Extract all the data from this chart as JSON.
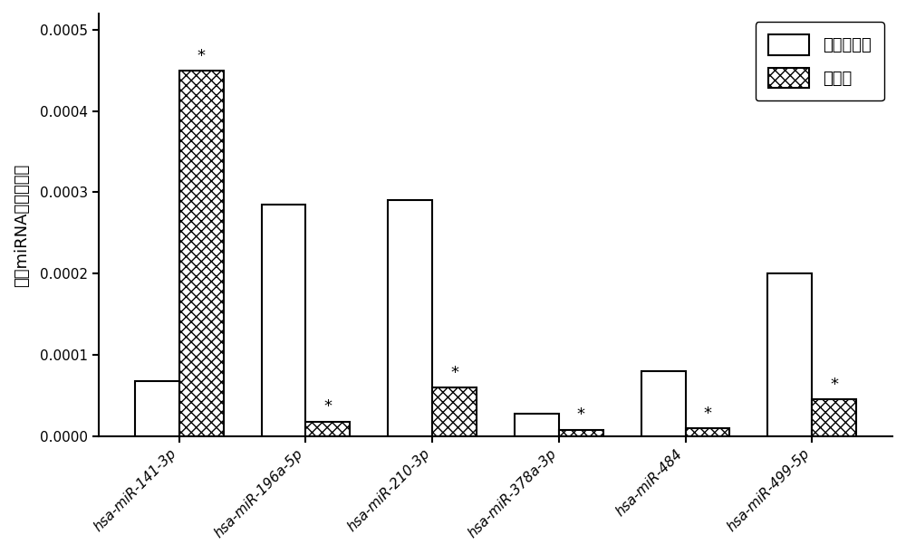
{
  "categories": [
    "hsa-miR-141-3p",
    "hsa-miR-196a-5p",
    "hsa-miR-210-3p",
    "hsa-miR-378a-3p",
    "hsa-miR-484",
    "hsa-miR-499-5p"
  ],
  "normal_values": [
    6.8e-05,
    0.000285,
    0.00029,
    2.8e-05,
    8e-05,
    0.0002
  ],
  "obese_values": [
    0.00045,
    1.8e-05,
    6e-05,
    8e-06,
    1e-05,
    4.5e-05
  ],
  "normal_label": "正常体重者",
  "obese_label": "肥胖者",
  "ylabel": "血浆miRNA表达中位数",
  "ylim": [
    0,
    0.00052
  ],
  "yticks": [
    0.0,
    0.0001,
    0.0002,
    0.0003,
    0.0004,
    0.0005
  ],
  "bar_width": 0.35,
  "normal_color": "white",
  "normal_edgecolor": "black",
  "obese_hatch": "xxx",
  "obese_facecolor": "white",
  "obese_edgecolor": "black",
  "star_positions_obese": [
    0,
    1,
    2,
    3,
    4,
    5
  ],
  "star_positions_normal": [],
  "background_color": "white",
  "tick_fontsize": 11,
  "label_fontsize": 13,
  "legend_fontsize": 13
}
